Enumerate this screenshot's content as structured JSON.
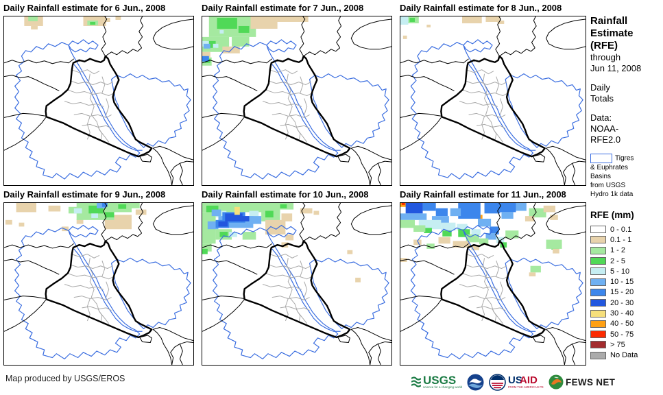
{
  "panels": [
    {
      "title": "Daily Rainfall estimate for 6 Jun., 2008",
      "rain": [
        [
          30,
          0,
          28,
          14,
          "t"
        ],
        [
          118,
          0,
          34,
          14,
          "t"
        ],
        [
          150,
          2,
          8,
          6,
          "t"
        ],
        [
          166,
          0,
          8,
          5,
          "t"
        ],
        [
          40,
          14,
          10,
          5,
          "t"
        ],
        [
          36,
          0,
          14,
          7,
          "g1"
        ],
        [
          124,
          6,
          16,
          7,
          "g1"
        ],
        [
          128,
          8,
          8,
          4,
          "g2"
        ]
      ]
    },
    {
      "title": "Daily Rainfall estimate for 7 Jun., 2008",
      "rain": [
        [
          10,
          0,
          70,
          30,
          "g1"
        ],
        [
          0,
          30,
          40,
          22,
          "g1"
        ],
        [
          44,
          30,
          26,
          14,
          "g1"
        ],
        [
          0,
          60,
          14,
          12,
          "g1"
        ],
        [
          22,
          2,
          30,
          16,
          "g2"
        ],
        [
          54,
          14,
          16,
          10,
          "g2"
        ],
        [
          6,
          36,
          14,
          10,
          "g2"
        ],
        [
          4,
          62,
          8,
          6,
          "g2"
        ],
        [
          72,
          0,
          40,
          18,
          "t"
        ],
        [
          108,
          0,
          50,
          8,
          "t"
        ],
        [
          30,
          44,
          26,
          10,
          "t"
        ],
        [
          0,
          52,
          12,
          8,
          "t"
        ],
        [
          0,
          36,
          10,
          8,
          "c"
        ],
        [
          16,
          40,
          8,
          6,
          "c"
        ],
        [
          26,
          20,
          6,
          5,
          "c"
        ],
        [
          2,
          40,
          10,
          7,
          "b1"
        ],
        [
          0,
          58,
          10,
          8,
          "b2"
        ]
      ]
    },
    {
      "title": "Daily Rainfall estimate for 8 Jun., 2008",
      "rain": [
        [
          0,
          0,
          12,
          12,
          "c"
        ],
        [
          12,
          0,
          16,
          10,
          "g1"
        ],
        [
          14,
          2,
          8,
          6,
          "g2"
        ],
        [
          94,
          0,
          30,
          10,
          "t"
        ],
        [
          130,
          0,
          22,
          8,
          "t"
        ],
        [
          148,
          6,
          10,
          5,
          "t"
        ],
        [
          4,
          28,
          6,
          5,
          "t"
        ],
        [
          40,
          12,
          6,
          4,
          "t"
        ]
      ]
    },
    {
      "title": "Daily Rainfall estimate for 9 Jun., 2008",
      "rain": [
        [
          18,
          0,
          30,
          14,
          "t"
        ],
        [
          66,
          4,
          18,
          9,
          "t"
        ],
        [
          150,
          18,
          40,
          22,
          "t"
        ],
        [
          196,
          10,
          16,
          8,
          "t"
        ],
        [
          2,
          26,
          10,
          7,
          "t"
        ],
        [
          22,
          30,
          8,
          6,
          "t"
        ],
        [
          86,
          36,
          10,
          7,
          "t"
        ],
        [
          108,
          24,
          10,
          8,
          "t"
        ],
        [
          108,
          0,
          56,
          26,
          "g1"
        ],
        [
          150,
          0,
          40,
          14,
          "g1"
        ],
        [
          96,
          6,
          14,
          10,
          "g1"
        ],
        [
          188,
          0,
          14,
          8,
          "g1"
        ],
        [
          126,
          4,
          22,
          12,
          "g2"
        ],
        [
          150,
          14,
          14,
          8,
          "g2"
        ],
        [
          170,
          2,
          12,
          7,
          "g2"
        ],
        [
          104,
          8,
          12,
          8,
          "c"
        ],
        [
          130,
          16,
          10,
          7,
          "c"
        ],
        [
          138,
          0,
          14,
          8,
          "b1"
        ],
        [
          146,
          0,
          8,
          6,
          "b2"
        ]
      ]
    },
    {
      "title": "Daily Rainfall estimate for 10 Jun., 2008",
      "rain": [
        [
          0,
          0,
          116,
          14,
          "g1"
        ],
        [
          0,
          14,
          20,
          48,
          "g1"
        ],
        [
          20,
          40,
          24,
          16,
          "g1"
        ],
        [
          88,
          8,
          28,
          20,
          "g1"
        ],
        [
          60,
          44,
          20,
          12,
          "g1"
        ],
        [
          0,
          62,
          14,
          12,
          "g1"
        ],
        [
          108,
          0,
          28,
          10,
          "g1"
        ],
        [
          6,
          4,
          18,
          10,
          "g2"
        ],
        [
          26,
          44,
          12,
          8,
          "g2"
        ],
        [
          94,
          12,
          12,
          10,
          "g2"
        ],
        [
          0,
          70,
          8,
          8,
          "g2"
        ],
        [
          116,
          2,
          10,
          6,
          "g2"
        ],
        [
          20,
          12,
          16,
          10,
          "c"
        ],
        [
          70,
          12,
          14,
          10,
          "c"
        ],
        [
          40,
          44,
          12,
          8,
          "c"
        ],
        [
          24,
          20,
          52,
          18,
          "b1"
        ],
        [
          14,
          10,
          14,
          10,
          "b1"
        ],
        [
          70,
          20,
          18,
          12,
          "b1"
        ],
        [
          8,
          28,
          16,
          12,
          "b1"
        ],
        [
          30,
          14,
          34,
          16,
          "b2"
        ],
        [
          20,
          26,
          20,
          12,
          "b2"
        ],
        [
          34,
          16,
          26,
          12,
          "b3"
        ],
        [
          24,
          28,
          14,
          8,
          "b3"
        ],
        [
          58,
          20,
          12,
          8,
          "b3"
        ],
        [
          48,
          6,
          8,
          12,
          "y"
        ],
        [
          94,
          26,
          30,
          22,
          "t"
        ],
        [
          118,
          16,
          16,
          12,
          "t"
        ],
        [
          124,
          48,
          12,
          9,
          "t"
        ],
        [
          146,
          8,
          18,
          8,
          "t"
        ],
        [
          166,
          12,
          8,
          6,
          "t"
        ],
        [
          216,
          72,
          8,
          6,
          "t"
        ],
        [
          228,
          114,
          8,
          7,
          "t"
        ],
        [
          118,
          60,
          10,
          8,
          "t"
        ]
      ]
    },
    {
      "title": "Daily Rainfall estimate for 11 Jun., 2008",
      "rain": [
        [
          0,
          0,
          10,
          6,
          "o"
        ],
        [
          98,
          8,
          7,
          6,
          "o"
        ],
        [
          116,
          18,
          9,
          6,
          "o"
        ],
        [
          140,
          2,
          8,
          7,
          "o"
        ],
        [
          2,
          0,
          5,
          3,
          "r"
        ],
        [
          8,
          0,
          26,
          16,
          "b3"
        ],
        [
          96,
          0,
          20,
          14,
          "b3"
        ],
        [
          136,
          6,
          10,
          8,
          "b3"
        ],
        [
          34,
          0,
          20,
          12,
          "b2"
        ],
        [
          54,
          8,
          18,
          12,
          "b2"
        ],
        [
          88,
          0,
          34,
          24,
          "b2"
        ],
        [
          128,
          0,
          24,
          16,
          "b2"
        ],
        [
          150,
          0,
          26,
          14,
          "b2"
        ],
        [
          136,
          36,
          14,
          12,
          "b2"
        ],
        [
          0,
          16,
          40,
          10,
          "b1"
        ],
        [
          48,
          20,
          26,
          12,
          "b1"
        ],
        [
          76,
          8,
          16,
          12,
          "b1"
        ],
        [
          118,
          24,
          20,
          12,
          "b1"
        ],
        [
          154,
          14,
          18,
          10,
          "b1"
        ],
        [
          176,
          0,
          16,
          12,
          "b1"
        ],
        [
          130,
          46,
          16,
          10,
          "b1"
        ],
        [
          28,
          26,
          34,
          14,
          "c"
        ],
        [
          62,
          30,
          22,
          12,
          "c"
        ],
        [
          86,
          32,
          16,
          10,
          "c"
        ],
        [
          146,
          52,
          12,
          9,
          "c"
        ],
        [
          108,
          40,
          14,
          9,
          "c"
        ],
        [
          88,
          40,
          18,
          12,
          "g2"
        ],
        [
          64,
          42,
          14,
          9,
          "g2"
        ],
        [
          36,
          38,
          12,
          8,
          "g2"
        ],
        [
          152,
          60,
          10,
          8,
          "g2"
        ],
        [
          230,
          62,
          12,
          9,
          "g2"
        ],
        [
          0,
          26,
          22,
          12,
          "g1"
        ],
        [
          20,
          34,
          18,
          10,
          "g1"
        ],
        [
          100,
          48,
          20,
          12,
          "g1"
        ],
        [
          120,
          54,
          14,
          9,
          "g1"
        ],
        [
          160,
          42,
          20,
          12,
          "g1"
        ],
        [
          196,
          8,
          26,
          14,
          "g1"
        ],
        [
          222,
          56,
          24,
          14,
          "g1"
        ],
        [
          198,
          96,
          16,
          10,
          "g1"
        ],
        [
          40,
          62,
          12,
          8,
          "g1"
        ],
        [
          58,
          52,
          18,
          10,
          "t"
        ],
        [
          80,
          58,
          26,
          10,
          "t"
        ],
        [
          108,
          64,
          12,
          8,
          "t"
        ],
        [
          20,
          56,
          12,
          8,
          "t"
        ],
        [
          218,
          4,
          18,
          10,
          "t"
        ],
        [
          228,
          18,
          12,
          8,
          "t"
        ],
        [
          190,
          20,
          14,
          8,
          "t"
        ],
        [
          232,
          70,
          10,
          7,
          "t"
        ],
        [
          196,
          106,
          10,
          6,
          "t"
        ],
        [
          0,
          84,
          10,
          6,
          "t"
        ]
      ]
    }
  ],
  "rain_colors": {
    "t": "#e8d3ac",
    "g1": "#a5e9a0",
    "g2": "#50d957",
    "c": "#c6eef2",
    "b1": "#6fb0f2",
    "b2": "#3c86ec",
    "b3": "#2257de",
    "y": "#f6df7c",
    "o": "#ffa013",
    "r": "#fc2a00",
    "dr": "#a32c2e",
    "nd": "#ababab"
  },
  "sidebar": {
    "title_lines": [
      "Rainfall",
      "Estimate",
      "(RFE)"
    ],
    "subtitle_lines": [
      "through",
      "Jun 11, 2008"
    ],
    "totals_lines": [
      "Daily",
      "Totals"
    ],
    "data_lines": [
      "Data:",
      "NOAA-",
      "RFE2.0"
    ],
    "basin_note": [
      "Tigres",
      "& Euphrates",
      "Basins",
      "from USGS",
      "Hydro 1k data"
    ],
    "legend": {
      "title": "RFE (mm)",
      "items": [
        {
          "label": "0 - 0.1",
          "color": "#ffffff"
        },
        {
          "label": "0.1 - 1",
          "color": "#e8d3ac"
        },
        {
          "label": "1 - 2",
          "color": "#a5e9a0"
        },
        {
          "label": "2 - 5",
          "color": "#50d957"
        },
        {
          "label": "5 - 10",
          "color": "#c6eef2"
        },
        {
          "label": "10 - 15",
          "color": "#6fb0f2"
        },
        {
          "label": "15 - 20",
          "color": "#3c86ec"
        },
        {
          "label": "20 - 30",
          "color": "#2257de"
        },
        {
          "label": "30 - 40",
          "color": "#f6df7c"
        },
        {
          "label": "40 - 50",
          "color": "#ffa013"
        },
        {
          "label": "50 - 75",
          "color": "#fc2a00"
        },
        {
          "label": "> 75",
          "color": "#a32c2e"
        },
        {
          "label": "No Data",
          "color": "#ababab"
        }
      ]
    }
  },
  "footer": {
    "credit": "Map produced by USGS/EROS",
    "logos": [
      {
        "name": "USGS",
        "tagline": "science for a changing world"
      },
      {
        "name": "NOAA",
        "tagline": ""
      },
      {
        "name": "USAID",
        "name_part1": "US",
        "name_part2": "AID",
        "tagline": "FROM THE AMERICAN PEOPLE"
      },
      {
        "name": "FEWS NET",
        "tagline": ""
      }
    ]
  },
  "map_colors": {
    "iraq_border": "#000000",
    "country_border": "#000000",
    "admin_border": "#a9a9a9",
    "basin_outline": "#3b6ee0"
  }
}
